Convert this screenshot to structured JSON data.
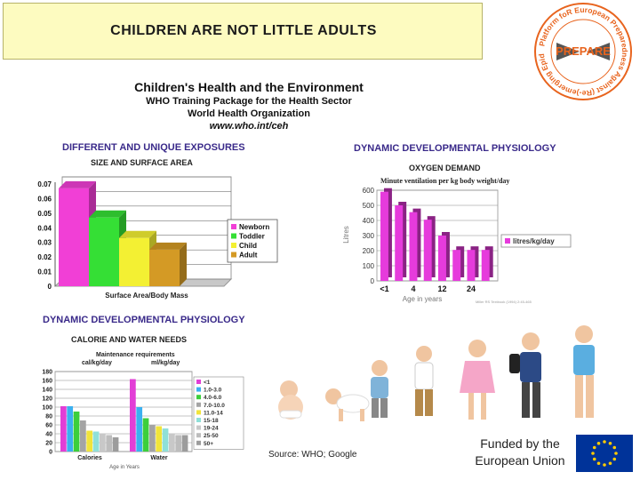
{
  "slide": {
    "header_title": "CHILDREN ARE NOT LITTLE ADULTS",
    "logo": {
      "text": "Platform foR European Preparedness Against (Re-)emerging Epidemics",
      "acronym": "PREPARE",
      "color": "#e8641e"
    },
    "who_block": {
      "line1": "Children's Health and the Environment",
      "line2": "WHO Training Package for the Health Sector",
      "line3": "World Health Organization",
      "line4": "www.who.int/ceh"
    },
    "source": "Source: WHO; Google",
    "funded_line1": "Funded by the",
    "funded_line2": "European Union",
    "eu_flag": {
      "name": "eu-flag-icon",
      "blue": "#003399",
      "star": "#ffcc00"
    }
  },
  "chart_data": [
    {
      "type": "bar",
      "section_title": "DIFFERENT AND UNIQUE  EXPOSURES",
      "title": "SIZE AND SURFACE AREA",
      "xlabel": "Surface Area/Body Mass",
      "ylabel": "",
      "ylim": [
        0,
        0.07
      ],
      "yticks": [
        "0",
        "0.01",
        "0.02",
        "0.03",
        "0.04",
        "0.05",
        "0.06",
        "0.07"
      ],
      "series": [
        {
          "name": "Newborn",
          "value": 0.067,
          "color": "#f13fd6"
        },
        {
          "name": "Toddler",
          "value": 0.047,
          "color": "#35df35"
        },
        {
          "name": "Child",
          "value": 0.033,
          "color": "#f3f033"
        },
        {
          "name": "Adult",
          "value": 0.025,
          "color": "#d49a25"
        }
      ],
      "grid": true,
      "legend": "right"
    },
    {
      "type": "bar",
      "section_title": "DYNAMIC DEVELOPMENTAL PHYSIOLOGY",
      "title": "OXYGEN DEMAND",
      "subtitle": "Minute ventilation per kg body weight/day",
      "xlabel": "Age in years",
      "ylabel": "Litres",
      "ylim": [
        0,
        600
      ],
      "yticks": [
        "0",
        "100",
        "200",
        "300",
        "400",
        "500",
        "600"
      ],
      "categories": [
        "<1",
        "",
        "4",
        "",
        "12",
        "",
        "24",
        ""
      ],
      "series": [
        {
          "name": "litres/kg/day",
          "values": [
            590,
            500,
            455,
            405,
            300,
            205,
            205,
            205
          ],
          "color": "#e63bdc"
        }
      ],
      "note": "Miller RS Textbook (1994) 2:45-465",
      "grid": true,
      "legend": "right"
    },
    {
      "type": "bar",
      "section_title": "DYNAMIC DEVELOPMENTAL PHYSIOLOGY",
      "title": "CALORIE AND WATER NEEDS",
      "subtitle": "Maintenance requirements",
      "units_left": "cal/kg/day",
      "units_right": "ml/kg/day",
      "xlabel": "Age in Years",
      "ylabel": "",
      "ylim": [
        0,
        180
      ],
      "yticks": [
        "0",
        "20",
        "40",
        "60",
        "80",
        "100",
        "120",
        "140",
        "160",
        "180"
      ],
      "categories": [
        "Calories",
        "Water"
      ],
      "series": [
        {
          "name": "<1",
          "values": [
            102,
            163
          ],
          "color": "#e23ed6"
        },
        {
          "name": "1.0-3.0",
          "values": [
            102,
            100
          ],
          "color": "#3bb0f0"
        },
        {
          "name": "4.0-6.0",
          "values": [
            90,
            75
          ],
          "color": "#3ccf3c"
        },
        {
          "name": "7.0-10.0",
          "values": [
            70,
            60
          ],
          "color": "#a4a4a4"
        },
        {
          "name": "11.0-14",
          "values": [
            47,
            57
          ],
          "color": "#f1e43a"
        },
        {
          "name": "15-18",
          "values": [
            45,
            52
          ],
          "color": "#8fe0d8"
        },
        {
          "name": "19-24",
          "values": [
            40,
            40
          ],
          "color": "#c8c8c8"
        },
        {
          "name": "25-50",
          "values": [
            37,
            37
          ],
          "color": "#bdbdbd"
        },
        {
          "name": "50+",
          "values": [
            32,
            37
          ],
          "color": "#9c9c9c"
        }
      ],
      "grid": true,
      "legend": "right"
    }
  ]
}
